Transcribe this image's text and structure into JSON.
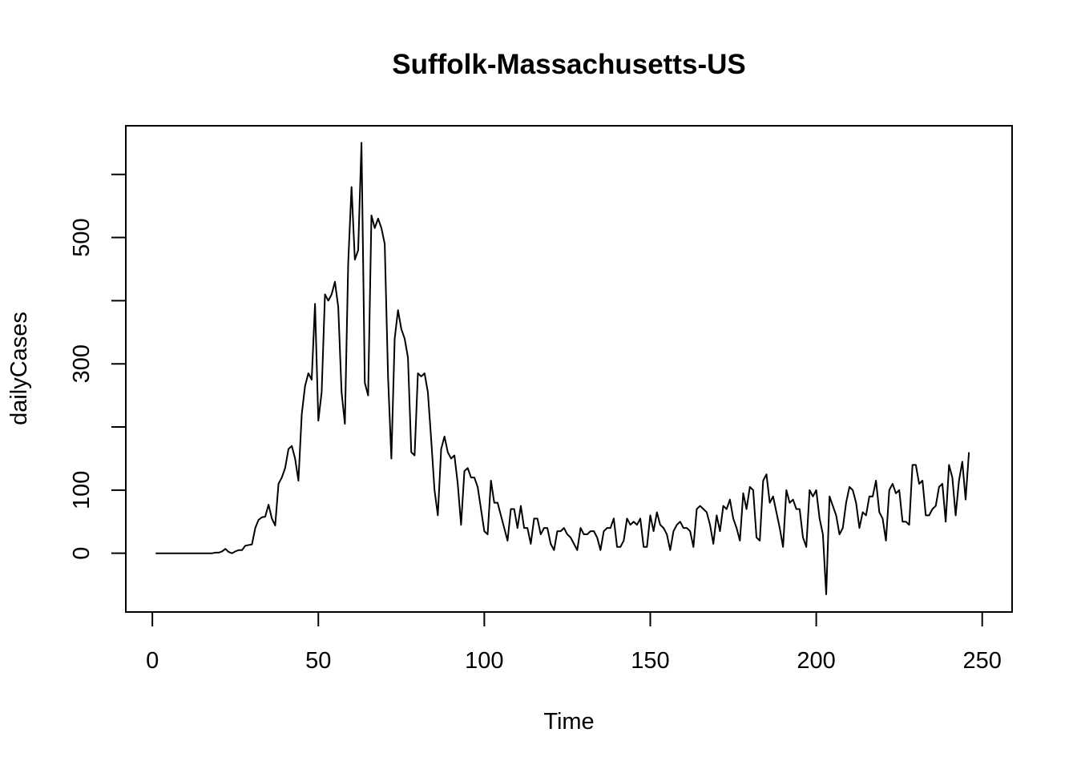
{
  "chart_data": {
    "type": "line",
    "title": "Suffolk-Massachusetts-US",
    "xlabel": "Time",
    "ylabel": "dailyCases",
    "xlim": [
      -8,
      259
    ],
    "ylim": [
      -93,
      677
    ],
    "x_ticks": [
      0,
      50,
      100,
      150,
      200,
      250
    ],
    "y_ticks": [
      0,
      100,
      200,
      300,
      400,
      500,
      600
    ],
    "y_tick_labels": [
      "0",
      "100",
      "",
      "300",
      "",
      "500",
      ""
    ],
    "grid": false,
    "legend": "none",
    "line_color": "#000000",
    "series": [
      {
        "x_start": 1,
        "x_step": 1,
        "values": [
          0,
          0,
          0,
          0,
          0,
          0,
          0,
          0,
          0,
          0,
          0,
          0,
          0,
          0,
          0,
          0,
          0,
          0,
          1,
          1,
          3,
          7,
          2,
          0,
          3,
          5,
          5,
          12,
          13,
          14,
          40,
          53,
          57,
          58,
          77,
          55,
          44,
          110,
          120,
          135,
          165,
          170,
          150,
          115,
          220,
          265,
          285,
          275,
          395,
          210,
          255,
          410,
          400,
          410,
          430,
          390,
          255,
          205,
          460,
          580,
          465,
          480,
          650,
          270,
          250,
          535,
          515,
          530,
          515,
          490,
          280,
          150,
          340,
          385,
          355,
          340,
          310,
          160,
          155,
          285,
          280,
          285,
          255,
          180,
          100,
          60,
          165,
          185,
          160,
          150,
          155,
          110,
          45,
          130,
          135,
          120,
          120,
          105,
          70,
          35,
          30,
          115,
          80,
          80,
          60,
          40,
          20,
          70,
          70,
          40,
          75,
          40,
          40,
          15,
          55,
          55,
          30,
          40,
          40,
          15,
          5,
          35,
          35,
          40,
          30,
          25,
          15,
          5,
          40,
          30,
          30,
          35,
          35,
          25,
          5,
          35,
          40,
          40,
          55,
          10,
          10,
          20,
          55,
          45,
          50,
          45,
          55,
          10,
          10,
          60,
          35,
          65,
          45,
          40,
          30,
          5,
          35,
          45,
          50,
          40,
          40,
          35,
          10,
          70,
          75,
          70,
          65,
          45,
          15,
          60,
          35,
          75,
          70,
          85,
          55,
          40,
          20,
          95,
          70,
          105,
          100,
          25,
          20,
          115,
          125,
          80,
          90,
          65,
          40,
          10,
          100,
          80,
          85,
          70,
          70,
          25,
          10,
          100,
          90,
          100,
          55,
          30,
          -65,
          90,
          75,
          60,
          30,
          40,
          80,
          105,
          100,
          80,
          40,
          65,
          60,
          90,
          90,
          115,
          65,
          55,
          20,
          100,
          110,
          95,
          100,
          50,
          50,
          45,
          140,
          140,
          110,
          115,
          60,
          60,
          70,
          75,
          105,
          110,
          50,
          140,
          120,
          60,
          115,
          145,
          85,
          160
        ]
      }
    ]
  }
}
